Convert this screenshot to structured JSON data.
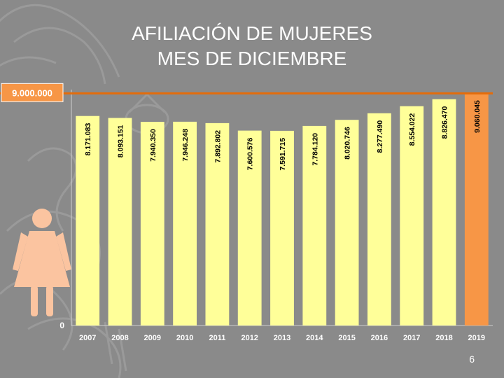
{
  "slide": {
    "title_line1": "AFILIACIÓN DE MUJERES",
    "title_line2": "MES DE DICIEMBRE",
    "page_number": "6"
  },
  "colors": {
    "background": "#8a8a8a",
    "bar": "#ffff99",
    "highlight_bar": "#f79646",
    "reference_line": "#e46c0a",
    "reference_label_bg": "#f79646",
    "woman_icon": "#fbc4a0"
  },
  "icons": [
    "woman-icon",
    "coat-of-arms-watermark"
  ],
  "chart_data": {
    "type": "bar",
    "categories": [
      "2007",
      "2008",
      "2009",
      "2010",
      "2011",
      "2012",
      "2013",
      "2014",
      "2015",
      "2016",
      "2017",
      "2018",
      "2019"
    ],
    "values": [
      8171083,
      8093151,
      7940350,
      7946248,
      7892802,
      7600576,
      7591715,
      7784120,
      8020746,
      8277490,
      8554022,
      8826470,
      9060045
    ],
    "value_labels": [
      "8.171.083",
      "8.093.151",
      "7.940.350",
      "7.946.248",
      "7.892.802",
      "7.600.576",
      "7.591.715",
      "7.784.120",
      "8.020.746",
      "8.277.490",
      "8.554.022",
      "8.826.470",
      "9.060.045"
    ],
    "highlight_index": 12,
    "reference_line": {
      "value": 9000000,
      "label": "9.000.000"
    },
    "y_tick_label": "0",
    "title": "AFILIACIÓN DE MUJERES MES DE DICIEMBRE",
    "xlabel": "",
    "ylabel": "",
    "ylim": [
      0,
      9200000
    ],
    "grid": false
  }
}
